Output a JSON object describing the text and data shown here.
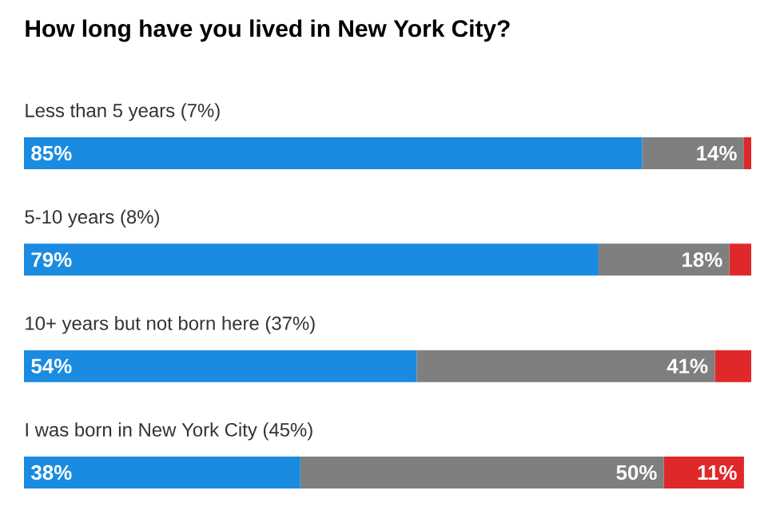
{
  "chart_data": {
    "type": "bar",
    "orientation": "horizontal",
    "stacked": true,
    "title": "How long have you lived in New York City?",
    "categories": [
      "Less than 5 years (7%)",
      "5-10 years (8%)",
      "10+ years but not born here (37%)",
      "I was born in New York City (45%)"
    ],
    "xlim": [
      0,
      100
    ],
    "series": [
      {
        "color": "#1a8be0",
        "values": [
          85,
          79,
          54,
          38
        ],
        "value_labels": [
          "85%",
          "79%",
          "54%",
          "38%"
        ]
      },
      {
        "color": "#7f7f7f",
        "values": [
          14,
          18,
          41,
          50
        ],
        "value_labels": [
          "14%",
          "18%",
          "41%",
          "50%"
        ]
      },
      {
        "color": "#e0282a",
        "values": [
          1,
          3,
          5,
          11
        ],
        "value_labels": [
          null,
          null,
          null,
          "11%"
        ]
      }
    ]
  }
}
